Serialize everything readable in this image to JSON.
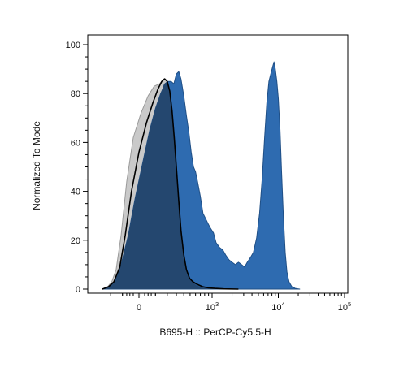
{
  "chart_data": {
    "type": "area",
    "title": "",
    "xlabel": "B695-H :: PerCP-Cy5.5-H",
    "ylabel": "Normalized To Mode",
    "x_scale": "biexponential",
    "ylim": [
      0,
      100
    ],
    "y_ticks": [
      0,
      20,
      40,
      60,
      80,
      100
    ],
    "x_ticks": [
      {
        "value": 0,
        "base": "0",
        "exp": ""
      },
      {
        "value": 1000,
        "base": "10",
        "exp": "3"
      },
      {
        "value": 10000,
        "base": "10",
        "exp": "4"
      },
      {
        "value": 100000,
        "base": "10",
        "exp": "5"
      }
    ],
    "grid": false,
    "legend": "none",
    "series": [
      {
        "style": "gray-filled",
        "fill": "#c9c9c9",
        "stroke": "#9a9a9a",
        "points": [
          [
            -290,
            0
          ],
          [
            -230,
            1
          ],
          [
            -190,
            3
          ],
          [
            -150,
            8
          ],
          [
            -110,
            22
          ],
          [
            -70,
            44
          ],
          [
            -30,
            62
          ],
          [
            10,
            72
          ],
          [
            50,
            79
          ],
          [
            90,
            83
          ],
          [
            130,
            84
          ],
          [
            170,
            86
          ],
          [
            200,
            85
          ],
          [
            230,
            80
          ],
          [
            260,
            70
          ],
          [
            290,
            57
          ],
          [
            320,
            43
          ],
          [
            350,
            30
          ],
          [
            390,
            17
          ],
          [
            430,
            9
          ],
          [
            480,
            5
          ],
          [
            540,
            3
          ],
          [
            620,
            1.5
          ],
          [
            750,
            0.7
          ],
          [
            900,
            0.3
          ],
          [
            1100,
            0
          ]
        ]
      },
      {
        "style": "blue-filled",
        "fill": "#2e6bb0",
        "stroke": "#1f4f86",
        "points": [
          [
            -290,
            0
          ],
          [
            -220,
            1
          ],
          [
            -160,
            3
          ],
          [
            -110,
            10
          ],
          [
            -60,
            22
          ],
          [
            -20,
            37
          ],
          [
            20,
            52
          ],
          [
            60,
            65
          ],
          [
            100,
            74
          ],
          [
            140,
            80
          ],
          [
            180,
            84
          ],
          [
            210,
            85
          ],
          [
            240,
            85
          ],
          [
            270,
            84
          ],
          [
            300,
            88
          ],
          [
            330,
            89
          ],
          [
            360,
            86
          ],
          [
            400,
            79
          ],
          [
            440,
            71
          ],
          [
            480,
            64
          ],
          [
            520,
            56
          ],
          [
            560,
            50
          ],
          [
            600,
            48
          ],
          [
            640,
            44
          ],
          [
            700,
            38
          ],
          [
            760,
            31
          ],
          [
            820,
            29
          ],
          [
            880,
            27
          ],
          [
            950,
            25
          ],
          [
            1050,
            23
          ],
          [
            1150,
            19
          ],
          [
            1300,
            17
          ],
          [
            1450,
            16
          ],
          [
            1600,
            14
          ],
          [
            1800,
            12
          ],
          [
            2000,
            11
          ],
          [
            2250,
            10
          ],
          [
            2500,
            11
          ],
          [
            2800,
            10
          ],
          [
            3100,
            9
          ],
          [
            3400,
            11
          ],
          [
            3800,
            13
          ],
          [
            4200,
            15
          ],
          [
            4700,
            21
          ],
          [
            5200,
            31
          ],
          [
            5700,
            45
          ],
          [
            6200,
            62
          ],
          [
            6700,
            76
          ],
          [
            7200,
            85
          ],
          [
            7700,
            88
          ],
          [
            8200,
            91
          ],
          [
            8600,
            93
          ],
          [
            9000,
            90
          ],
          [
            9500,
            85
          ],
          [
            10000,
            78
          ],
          [
            10600,
            65
          ],
          [
            11200,
            48
          ],
          [
            11900,
            30
          ],
          [
            12700,
            15
          ],
          [
            13500,
            7
          ],
          [
            14500,
            3
          ],
          [
            16000,
            1
          ],
          [
            18000,
            0.3
          ],
          [
            21000,
            0
          ]
        ]
      },
      {
        "style": "dark-overlap",
        "fill": "#24476f",
        "stroke": "none",
        "points": [
          [
            -260,
            0
          ],
          [
            -220,
            1
          ],
          [
            -160,
            3
          ],
          [
            -110,
            10
          ],
          [
            -60,
            22
          ],
          [
            -20,
            37
          ],
          [
            20,
            52
          ],
          [
            60,
            65
          ],
          [
            100,
            74
          ],
          [
            140,
            80
          ],
          [
            170,
            84
          ],
          [
            200,
            85
          ],
          [
            230,
            80
          ],
          [
            260,
            70
          ],
          [
            290,
            57
          ],
          [
            320,
            43
          ],
          [
            350,
            30
          ],
          [
            390,
            17
          ],
          [
            430,
            9
          ],
          [
            480,
            5
          ],
          [
            540,
            3
          ],
          [
            620,
            1.5
          ],
          [
            750,
            0.7
          ],
          [
            900,
            0.3
          ],
          [
            1100,
            0
          ]
        ]
      },
      {
        "style": "black-outline",
        "fill": "none",
        "stroke": "#000000",
        "points": [
          [
            -290,
            0
          ],
          [
            -220,
            1
          ],
          [
            -170,
            3
          ],
          [
            -120,
            9
          ],
          [
            -80,
            22
          ],
          [
            -40,
            40
          ],
          [
            0,
            56
          ],
          [
            40,
            68
          ],
          [
            80,
            76
          ],
          [
            120,
            82
          ],
          [
            150,
            85
          ],
          [
            175,
            86
          ],
          [
            200,
            85
          ],
          [
            225,
            81
          ],
          [
            250,
            73
          ],
          [
            275,
            62
          ],
          [
            300,
            50
          ],
          [
            330,
            36
          ],
          [
            360,
            24
          ],
          [
            400,
            14
          ],
          [
            440,
            8
          ],
          [
            490,
            4.5
          ],
          [
            550,
            3
          ],
          [
            630,
            2
          ],
          [
            750,
            1
          ],
          [
            900,
            0.5
          ],
          [
            1100,
            0.3
          ],
          [
            1500,
            0.1
          ],
          [
            2500,
            0
          ]
        ]
      }
    ]
  }
}
